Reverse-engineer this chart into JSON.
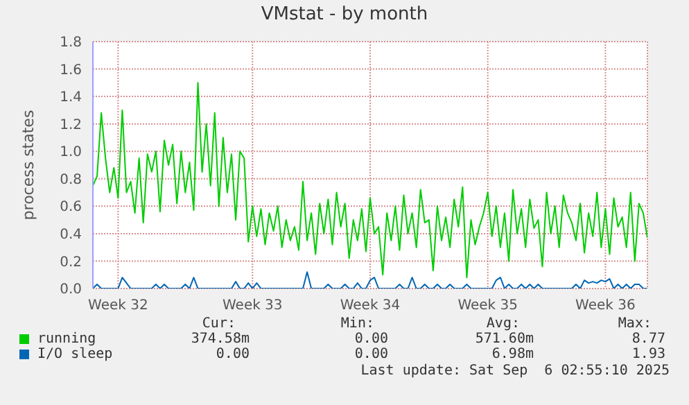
{
  "chart_data": {
    "type": "line",
    "title": "VMstat - by month",
    "ylabel": "process states",
    "categories": [
      null,
      null,
      null,
      null,
      null,
      null,
      "Week 32",
      null,
      null,
      null,
      null,
      null,
      null,
      null,
      null,
      null,
      null,
      null,
      null,
      null,
      null,
      null,
      null,
      null,
      null,
      null,
      null,
      null,
      null,
      null,
      null,
      null,
      null,
      null,
      null,
      null,
      null,
      null,
      "Week 33",
      null,
      null,
      null,
      null,
      null,
      null,
      null,
      null,
      null,
      null,
      null,
      null,
      null,
      null,
      null,
      null,
      null,
      null,
      null,
      null,
      null,
      null,
      null,
      null,
      null,
      null,
      null,
      "Week 34",
      null,
      null,
      null,
      null,
      null,
      null,
      null,
      null,
      null,
      null,
      null,
      null,
      null,
      null,
      null,
      null,
      null,
      null,
      null,
      null,
      null,
      null,
      null,
      null,
      null,
      null,
      null,
      "Week 35",
      null,
      null,
      null,
      null,
      null,
      null,
      null,
      null,
      null,
      null,
      null,
      null,
      null,
      null,
      null,
      null,
      null,
      null,
      null,
      null,
      null,
      null,
      null,
      null,
      null,
      null,
      null,
      "Week 36",
      null,
      null,
      null,
      null,
      null,
      null,
      null,
      null,
      null,
      null
    ],
    "series": [
      {
        "name": "running",
        "color": "#00cc00",
        "values": [
          0.75,
          0.82,
          1.28,
          0.95,
          0.7,
          0.88,
          0.66,
          1.3,
          0.7,
          0.78,
          0.55,
          0.95,
          0.48,
          0.98,
          0.85,
          1.0,
          0.56,
          1.08,
          0.9,
          1.05,
          0.62,
          1.0,
          0.7,
          0.92,
          0.57,
          1.5,
          0.85,
          1.2,
          0.75,
          1.28,
          0.6,
          1.1,
          0.7,
          0.98,
          0.5,
          1.0,
          0.95,
          0.34,
          0.6,
          0.38,
          0.58,
          0.32,
          0.55,
          0.42,
          0.6,
          0.3,
          0.5,
          0.35,
          0.45,
          0.28,
          0.78,
          0.35,
          0.55,
          0.25,
          0.62,
          0.4,
          0.65,
          0.32,
          0.7,
          0.45,
          0.62,
          0.22,
          0.5,
          0.35,
          0.58,
          0.27,
          0.66,
          0.4,
          0.45,
          0.1,
          0.55,
          0.35,
          0.6,
          0.28,
          0.68,
          0.4,
          0.55,
          0.3,
          0.72,
          0.48,
          0.5,
          0.13,
          0.6,
          0.35,
          0.52,
          0.3,
          0.65,
          0.45,
          0.74,
          0.08,
          0.5,
          0.32,
          0.45,
          0.55,
          0.7,
          0.38,
          0.6,
          0.3,
          0.55,
          0.2,
          0.72,
          0.4,
          0.58,
          0.3,
          0.65,
          0.44,
          0.5,
          0.16,
          0.7,
          0.4,
          0.6,
          0.3,
          0.68,
          0.55,
          0.48,
          0.35,
          0.62,
          0.26,
          0.55,
          0.38,
          0.7,
          0.3,
          0.58,
          0.25,
          0.66,
          0.45,
          0.52,
          0.3,
          0.7,
          0.2,
          0.62,
          0.55,
          0.37
        ]
      },
      {
        "name": "I/O sleep",
        "color": "#0066b3",
        "values": [
          0,
          0.03,
          0,
          0,
          0,
          0,
          0,
          0.08,
          0.04,
          0,
          0,
          0,
          0,
          0,
          0,
          0.03,
          0,
          0.03,
          0,
          0,
          0,
          0,
          0.03,
          0,
          0.08,
          0,
          0,
          0,
          0,
          0,
          0,
          0,
          0,
          0,
          0.05,
          0,
          0,
          0.04,
          0,
          0.04,
          0,
          0,
          0,
          0,
          0,
          0,
          0,
          0,
          0,
          0,
          0,
          0.12,
          0,
          0,
          0,
          0,
          0.03,
          0,
          0,
          0,
          0.03,
          0,
          0,
          0.04,
          0,
          0,
          0.06,
          0.08,
          0,
          0,
          0,
          0,
          0,
          0.03,
          0,
          0,
          0.08,
          0,
          0,
          0.03,
          0,
          0,
          0.03,
          0,
          0,
          0.03,
          0,
          0,
          0,
          0.03,
          0,
          0,
          0,
          0,
          0,
          0,
          0.06,
          0.08,
          0,
          0.03,
          0,
          0,
          0.03,
          0,
          0.03,
          0,
          0.03,
          0,
          0,
          0,
          0,
          0,
          0,
          0,
          0,
          0.03,
          0,
          0.06,
          0.04,
          0.05,
          0.04,
          0.06,
          0.05,
          0.07,
          0,
          0.03,
          0,
          0.03,
          0,
          0.03,
          0.03,
          0,
          0
        ]
      }
    ],
    "ylim": [
      0,
      1.8
    ],
    "yticks": [
      {
        "value": 0,
        "label": "0.0"
      },
      0.2,
      0.4,
      0.6,
      0.8,
      {
        "value": 1,
        "label": "1.0"
      },
      1.2,
      1.4,
      1.6,
      1.8
    ],
    "grid": true,
    "legend": "bottom",
    "marker": "none",
    "line_style": "solid",
    "annotations": [
      "Cur:",
      "Min:",
      "Avg:",
      "Max:",
      "374.58m",
      "0.00",
      "571.60m",
      "8.77",
      "0.00",
      "0.00",
      "6.98m",
      "1.93",
      "Last update: Sat Sep  6 02:55:10 2025"
    ]
  }
}
